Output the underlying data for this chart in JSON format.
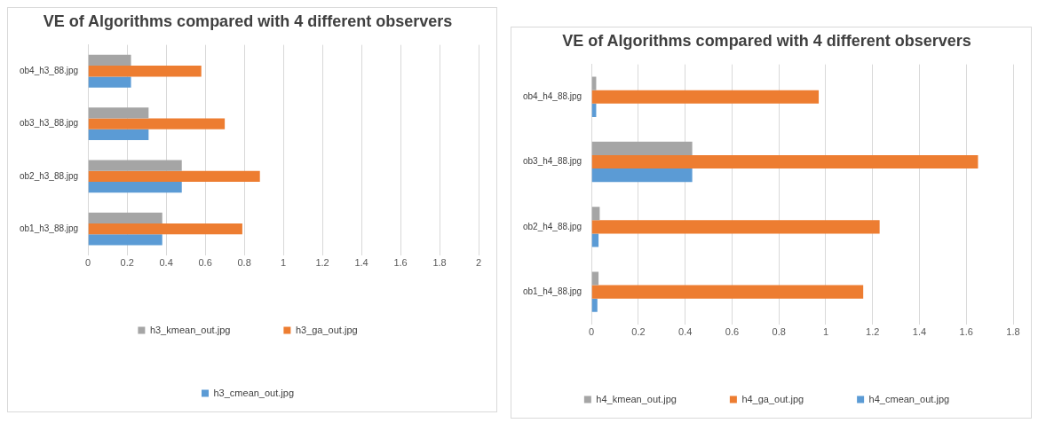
{
  "chart_data": [
    {
      "type": "bar",
      "orientation": "horizontal",
      "title": "VE of Algorithms compared with 4 different observers",
      "categories": [
        "ob4_h3_88.jpg",
        "ob3_h3_88.jpg",
        "ob2_h3_88.jpg",
        "ob1_h3_88.jpg"
      ],
      "series": [
        {
          "name": "h3_kmean_out.jpg",
          "color": "#a5a5a5",
          "values": [
            0.22,
            0.31,
            0.48,
            0.38
          ]
        },
        {
          "name": "h3_ga_out.jpg",
          "color": "#ed7d31",
          "values": [
            0.58,
            0.7,
            0.88,
            0.79
          ]
        },
        {
          "name": "h3_cmean_out.jpg",
          "color": "#5b9bd5",
          "values": [
            0.22,
            0.31,
            0.48,
            0.38
          ]
        }
      ],
      "xlim": [
        0,
        2
      ],
      "xticks": [
        0,
        0.2,
        0.4,
        0.6,
        0.8,
        1,
        1.2,
        1.4,
        1.6,
        1.8,
        2
      ],
      "grid": "x",
      "legend": "bottom"
    },
    {
      "type": "bar",
      "orientation": "horizontal",
      "title": "VE of Algorithms compared with 4 different observers",
      "categories": [
        "ob4_h4_88.jpg",
        "ob3_h4_88.jpg",
        "ob2_h4_88.jpg",
        "ob1_h4_88.jpg"
      ],
      "series": [
        {
          "name": "h4_kmean_out.jpg",
          "color": "#a5a5a5",
          "values": [
            0.02,
            0.43,
            0.035,
            0.03
          ]
        },
        {
          "name": "h4_ga_out.jpg",
          "color": "#ed7d31",
          "values": [
            0.97,
            1.65,
            1.23,
            1.16
          ]
        },
        {
          "name": "h4_cmean_out.jpg",
          "color": "#5b9bd5",
          "values": [
            0.02,
            0.43,
            0.03,
            0.025
          ]
        }
      ],
      "xlim": [
        0,
        1.8
      ],
      "xticks": [
        0,
        0.2,
        0.4,
        0.6,
        0.8,
        1,
        1.2,
        1.4,
        1.6,
        1.8
      ],
      "grid": "x",
      "legend": "bottom"
    }
  ]
}
